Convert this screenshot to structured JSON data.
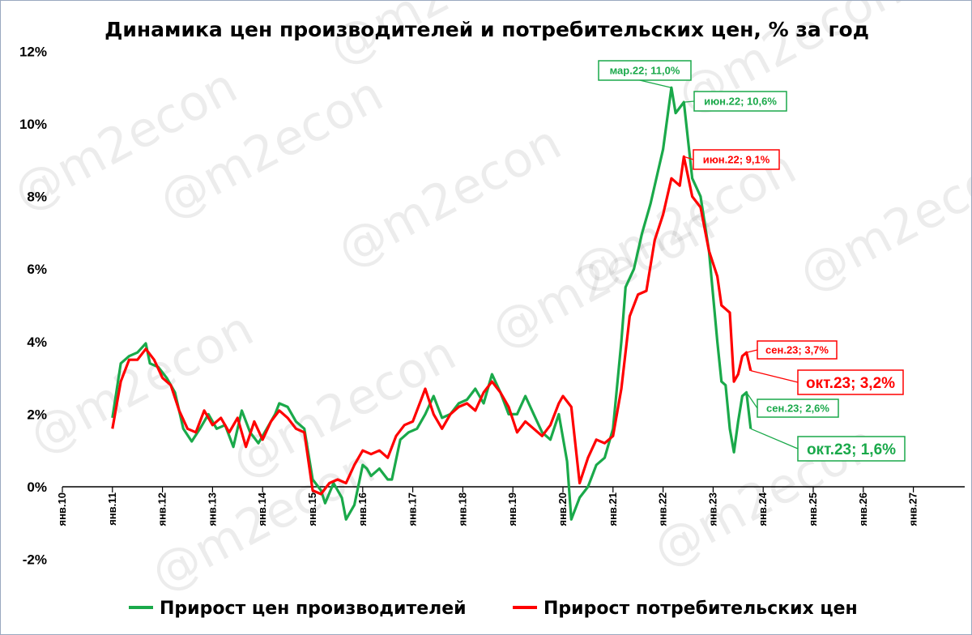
{
  "watermark": "@m2econ",
  "chart_data": {
    "type": "line",
    "title": "Динамика цен производителей и потребительских цен, % за год",
    "xlabel": "",
    "ylabel": "",
    "ylim": [
      -2,
      12
    ],
    "yticks": [
      -2,
      0,
      2,
      4,
      6,
      8,
      10,
      12
    ],
    "ytick_labels": [
      "-2%",
      "0%",
      "2%",
      "4%",
      "6%",
      "8%",
      "10%",
      "12%"
    ],
    "xlim": [
      "2010-01",
      "2027-12"
    ],
    "xticks": [
      "2010-01",
      "2011-01",
      "2012-01",
      "2013-01",
      "2014-01",
      "2015-01",
      "2016-01",
      "2017-01",
      "2018-01",
      "2019-01",
      "2020-01",
      "2021-01",
      "2022-01",
      "2023-01",
      "2024-01",
      "2025-01",
      "2026-01",
      "2027-01"
    ],
    "xtick_labels": [
      "янв.10",
      "янв.11",
      "янв.12",
      "янв.13",
      "янв.14",
      "янв.15",
      "янв.16",
      "янв.17",
      "янв.18",
      "янв.19",
      "янв.20",
      "янв.21",
      "янв.22",
      "янв.23",
      "янв.24",
      "янв.25",
      "янв.26",
      "янв.27"
    ],
    "grid": false,
    "legend_position": "bottom",
    "series": [
      {
        "name": "Прирост цен производителей",
        "color": "#1aa94a",
        "points": [
          [
            "2011-01",
            1.9
          ],
          [
            "2011-03",
            3.4
          ],
          [
            "2011-05",
            3.6
          ],
          [
            "2011-07",
            3.7
          ],
          [
            "2011-09",
            3.95
          ],
          [
            "2011-10",
            3.4
          ],
          [
            "2011-12",
            3.3
          ],
          [
            "2012-02",
            3.0
          ],
          [
            "2012-04",
            2.6
          ],
          [
            "2012-06",
            1.6
          ],
          [
            "2012-08",
            1.25
          ],
          [
            "2012-10",
            1.6
          ],
          [
            "2012-12",
            2.0
          ],
          [
            "2013-02",
            1.6
          ],
          [
            "2013-04",
            1.7
          ],
          [
            "2013-06",
            1.1
          ],
          [
            "2013-08",
            2.1
          ],
          [
            "2013-10",
            1.5
          ],
          [
            "2013-12",
            1.2
          ],
          [
            "2014-02",
            1.6
          ],
          [
            "2014-04",
            2.0
          ],
          [
            "2014-05",
            2.3
          ],
          [
            "2014-07",
            2.2
          ],
          [
            "2014-09",
            1.8
          ],
          [
            "2014-11",
            1.6
          ],
          [
            "2015-01",
            0.2
          ],
          [
            "2015-03",
            -0.1
          ],
          [
            "2015-04",
            -0.45
          ],
          [
            "2015-06",
            0.1
          ],
          [
            "2015-08",
            -0.3
          ],
          [
            "2015-09",
            -0.9
          ],
          [
            "2015-11",
            -0.5
          ],
          [
            "2016-01",
            0.6
          ],
          [
            "2016-02",
            0.5
          ],
          [
            "2016-03",
            0.3
          ],
          [
            "2016-05",
            0.5
          ],
          [
            "2016-07",
            0.2
          ],
          [
            "2016-08",
            0.2
          ],
          [
            "2016-10",
            1.3
          ],
          [
            "2016-12",
            1.5
          ],
          [
            "2017-02",
            1.6
          ],
          [
            "2017-04",
            2.0
          ],
          [
            "2017-06",
            2.5
          ],
          [
            "2017-08",
            1.9
          ],
          [
            "2017-10",
            2.0
          ],
          [
            "2017-12",
            2.3
          ],
          [
            "2018-02",
            2.4
          ],
          [
            "2018-04",
            2.7
          ],
          [
            "2018-06",
            2.3
          ],
          [
            "2018-08",
            3.1
          ],
          [
            "2018-10",
            2.6
          ],
          [
            "2018-12",
            2.0
          ],
          [
            "2019-02",
            2.0
          ],
          [
            "2019-04",
            2.5
          ],
          [
            "2019-06",
            2.0
          ],
          [
            "2019-08",
            1.5
          ],
          [
            "2019-10",
            1.3
          ],
          [
            "2019-12",
            2.0
          ],
          [
            "2020-02",
            0.7
          ],
          [
            "2020-03",
            -0.9
          ],
          [
            "2020-05",
            -0.3
          ],
          [
            "2020-07",
            0.0
          ],
          [
            "2020-09",
            0.6
          ],
          [
            "2020-11",
            0.8
          ],
          [
            "2021-01",
            1.6
          ],
          [
            "2021-03",
            4.0
          ],
          [
            "2021-04",
            5.5
          ],
          [
            "2021-06",
            6.0
          ],
          [
            "2021-08",
            7.0
          ],
          [
            "2021-10",
            7.8
          ],
          [
            "2021-12",
            8.8
          ],
          [
            "2022-01",
            9.3
          ],
          [
            "2022-03",
            11.0
          ],
          [
            "2022-04",
            10.3
          ],
          [
            "2022-06",
            10.6
          ],
          [
            "2022-08",
            8.5
          ],
          [
            "2022-10",
            8.0
          ],
          [
            "2022-12",
            6.5
          ],
          [
            "2023-02",
            4.0
          ],
          [
            "2023-03",
            2.9
          ],
          [
            "2023-04",
            2.8
          ],
          [
            "2023-05",
            1.6
          ],
          [
            "2023-06",
            0.95
          ],
          [
            "2023-07",
            1.8
          ],
          [
            "2023-08",
            2.5
          ],
          [
            "2023-09",
            2.6
          ],
          [
            "2023-10",
            1.6
          ]
        ]
      },
      {
        "name": "Прирост потребительских цен",
        "color": "#ff0000",
        "points": [
          [
            "2011-01",
            1.6
          ],
          [
            "2011-03",
            2.9
          ],
          [
            "2011-05",
            3.5
          ],
          [
            "2011-07",
            3.5
          ],
          [
            "2011-09",
            3.8
          ],
          [
            "2011-11",
            3.5
          ],
          [
            "2012-01",
            3.0
          ],
          [
            "2012-03",
            2.8
          ],
          [
            "2012-05",
            2.1
          ],
          [
            "2012-07",
            1.6
          ],
          [
            "2012-09",
            1.5
          ],
          [
            "2012-11",
            2.1
          ],
          [
            "2013-01",
            1.7
          ],
          [
            "2013-03",
            1.9
          ],
          [
            "2013-05",
            1.5
          ],
          [
            "2013-07",
            1.9
          ],
          [
            "2013-09",
            1.1
          ],
          [
            "2013-11",
            1.8
          ],
          [
            "2014-01",
            1.3
          ],
          [
            "2014-03",
            1.8
          ],
          [
            "2014-05",
            2.1
          ],
          [
            "2014-07",
            1.9
          ],
          [
            "2014-09",
            1.6
          ],
          [
            "2014-11",
            1.5
          ],
          [
            "2015-01",
            -0.1
          ],
          [
            "2015-03",
            -0.2
          ],
          [
            "2015-05",
            0.1
          ],
          [
            "2015-07",
            0.2
          ],
          [
            "2015-09",
            0.1
          ],
          [
            "2015-11",
            0.6
          ],
          [
            "2016-01",
            1.0
          ],
          [
            "2016-03",
            0.9
          ],
          [
            "2016-05",
            1.0
          ],
          [
            "2016-07",
            0.8
          ],
          [
            "2016-09",
            1.4
          ],
          [
            "2016-11",
            1.7
          ],
          [
            "2017-01",
            1.8
          ],
          [
            "2017-03",
            2.4
          ],
          [
            "2017-04",
            2.7
          ],
          [
            "2017-06",
            2.0
          ],
          [
            "2017-08",
            1.6
          ],
          [
            "2017-10",
            2.0
          ],
          [
            "2017-12",
            2.2
          ],
          [
            "2018-02",
            2.3
          ],
          [
            "2018-04",
            2.1
          ],
          [
            "2018-06",
            2.6
          ],
          [
            "2018-08",
            2.9
          ],
          [
            "2018-10",
            2.6
          ],
          [
            "2018-12",
            2.2
          ],
          [
            "2019-02",
            1.5
          ],
          [
            "2019-04",
            1.8
          ],
          [
            "2019-06",
            1.6
          ],
          [
            "2019-08",
            1.4
          ],
          [
            "2019-10",
            1.7
          ],
          [
            "2019-12",
            2.3
          ],
          [
            "2020-01",
            2.5
          ],
          [
            "2020-03",
            2.2
          ],
          [
            "2020-05",
            0.1
          ],
          [
            "2020-07",
            0.8
          ],
          [
            "2020-09",
            1.3
          ],
          [
            "2020-11",
            1.2
          ],
          [
            "2021-01",
            1.4
          ],
          [
            "2021-03",
            2.7
          ],
          [
            "2021-05",
            4.7
          ],
          [
            "2021-07",
            5.3
          ],
          [
            "2021-09",
            5.4
          ],
          [
            "2021-11",
            6.8
          ],
          [
            "2022-01",
            7.5
          ],
          [
            "2022-03",
            8.5
          ],
          [
            "2022-05",
            8.3
          ],
          [
            "2022-06",
            9.1
          ],
          [
            "2022-08",
            8.0
          ],
          [
            "2022-10",
            7.7
          ],
          [
            "2022-12",
            6.5
          ],
          [
            "2023-02",
            5.8
          ],
          [
            "2023-03",
            5.0
          ],
          [
            "2023-05",
            4.8
          ],
          [
            "2023-06",
            2.9
          ],
          [
            "2023-07",
            3.1
          ],
          [
            "2023-08",
            3.6
          ],
          [
            "2023-09",
            3.7
          ],
          [
            "2023-10",
            3.2
          ]
        ]
      }
    ],
    "annotations": [
      {
        "text": "мар.22; 11,0%",
        "series": 0,
        "x": "2022-03",
        "y": 11.0,
        "size": "small"
      },
      {
        "text": "июн.22; 10,6%",
        "series": 0,
        "x": "2022-06",
        "y": 10.6,
        "size": "small"
      },
      {
        "text": "июн.22; 9,1%",
        "series": 1,
        "x": "2022-06",
        "y": 9.1,
        "size": "small"
      },
      {
        "text": "сен.23; 3,7%",
        "series": 1,
        "x": "2023-09",
        "y": 3.7,
        "size": "small"
      },
      {
        "text": "окт.23; 3,2%",
        "series": 1,
        "x": "2023-10",
        "y": 3.2,
        "size": "large"
      },
      {
        "text": "сен.23; 2,6%",
        "series": 0,
        "x": "2023-09",
        "y": 2.6,
        "size": "small"
      },
      {
        "text": "окт.23; 1,6%",
        "series": 0,
        "x": "2023-10",
        "y": 1.6,
        "size": "large"
      }
    ]
  }
}
